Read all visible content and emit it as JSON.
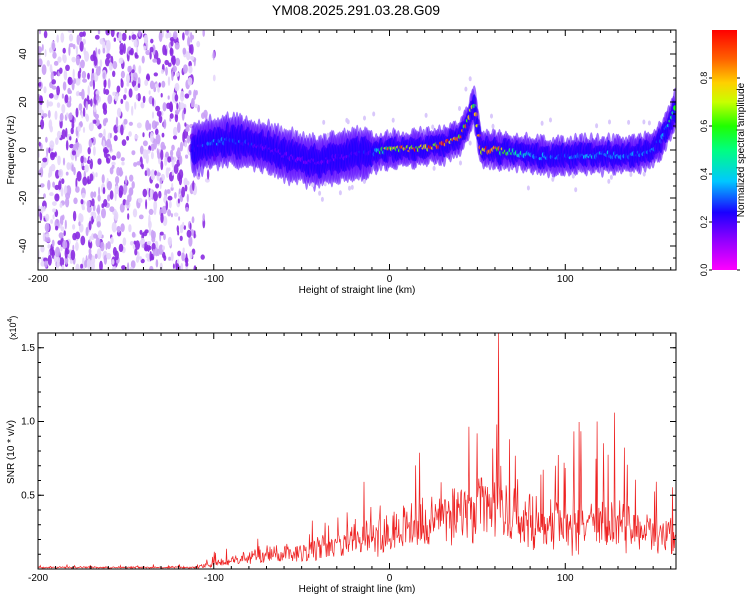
{
  "title": "YM08.2025.291.03.28.G09",
  "chart_data": [
    {
      "type": "heatmap",
      "xlabel": "Height of straight line (km)",
      "ylabel": "Frequency (Hz)",
      "xlim": [
        -200,
        163
      ],
      "ylim": [
        -50,
        50
      ],
      "xticks": [
        -200,
        -100,
        0,
        100
      ],
      "xtick_labels": [
        "-200",
        "-100",
        "0",
        "100"
      ],
      "yticks": [
        -40,
        -20,
        0,
        20,
        40
      ],
      "ytick_labels": [
        "-40",
        "-20",
        "0",
        "20",
        "40"
      ],
      "colorbar": {
        "label": "Normalized spectral amplitude",
        "range": [
          0,
          1
        ],
        "ticks": [
          0.0,
          0.2,
          0.4,
          0.6,
          0.8
        ],
        "tick_labels": [
          "0.0",
          "0.2",
          "0.4",
          "0.6",
          "0.8"
        ],
        "colormap": "rainbow"
      },
      "noise_region_x": [
        -200,
        -105
      ],
      "signal_trace": {
        "x": [
          -112,
          -100,
          -90,
          -80,
          -70,
          -60,
          -50,
          -40,
          -30,
          -20,
          -10,
          0,
          10,
          20,
          30,
          40,
          45,
          48,
          52,
          60,
          70,
          80,
          90,
          100,
          110,
          120,
          130,
          140,
          150,
          155,
          160,
          163
        ],
        "freq": [
          0,
          3,
          4,
          3,
          1,
          -2,
          -4,
          -5,
          -3,
          -2,
          -1,
          0,
          0.5,
          1,
          2,
          5,
          12,
          20,
          0,
          0,
          -1,
          -2,
          -3,
          -3,
          -2,
          -2,
          -2,
          -2,
          0,
          5,
          12,
          18
        ],
        "amplitude": [
          0.25,
          0.3,
          0.3,
          0.25,
          0.2,
          0.2,
          0.18,
          0.2,
          0.2,
          0.22,
          0.25,
          0.75,
          0.8,
          0.85,
          0.9,
          0.85,
          0.8,
          0.7,
          0.85,
          0.85,
          0.5,
          0.35,
          0.3,
          0.28,
          0.4,
          0.35,
          0.3,
          0.3,
          0.28,
          0.3,
          0.45,
          0.55
        ]
      }
    },
    {
      "type": "line",
      "xlabel": "Height of straight line (km)",
      "ylabel": "SNR (10 * v/v)",
      "y_multiplier": "(x10",
      "y_multiplier_exp": "4",
      "y_multiplier_close": ")",
      "xlim": [
        -200,
        163
      ],
      "ylim": [
        0,
        1.6
      ],
      "xticks": [
        -200,
        -100,
        0,
        100
      ],
      "xtick_labels": [
        "-200",
        "-100",
        "0",
        "100"
      ],
      "yticks": [
        0.5,
        1.0,
        1.5
      ],
      "ytick_labels": [
        "0.5",
        "1.0",
        "1.5"
      ],
      "color": "#ee2222",
      "envelope": {
        "x": [
          -200,
          -110,
          -100,
          -90,
          -80,
          -70,
          -60,
          -50,
          -40,
          -30,
          -20,
          -10,
          0,
          10,
          20,
          30,
          40,
          50,
          60,
          70,
          80,
          90,
          100,
          110,
          120,
          130,
          140,
          150,
          163
        ],
        "base": [
          0.01,
          0.01,
          0.03,
          0.05,
          0.07,
          0.09,
          0.1,
          0.12,
          0.14,
          0.16,
          0.18,
          0.22,
          0.25,
          0.28,
          0.32,
          0.35,
          0.38,
          0.4,
          0.42,
          0.35,
          0.3,
          0.28,
          0.28,
          0.27,
          0.26,
          0.25,
          0.25,
          0.24,
          0.22
        ],
        "peak": [
          0.03,
          0.03,
          0.12,
          0.16,
          0.22,
          0.28,
          0.3,
          0.32,
          0.4,
          0.48,
          0.55,
          0.6,
          0.62,
          0.7,
          0.74,
          0.78,
          0.86,
          0.98,
          1.0,
          0.8,
          0.85,
          0.82,
          0.9,
          0.95,
          0.88,
          0.9,
          0.85,
          0.68,
          0.6
        ]
      },
      "spikes": [
        {
          "x": 62,
          "y": 1.6
        },
        {
          "x": 61,
          "y": 0.98
        },
        {
          "x": 128,
          "y": 1.06
        },
        {
          "x": 118,
          "y": 1.0
        }
      ]
    }
  ]
}
